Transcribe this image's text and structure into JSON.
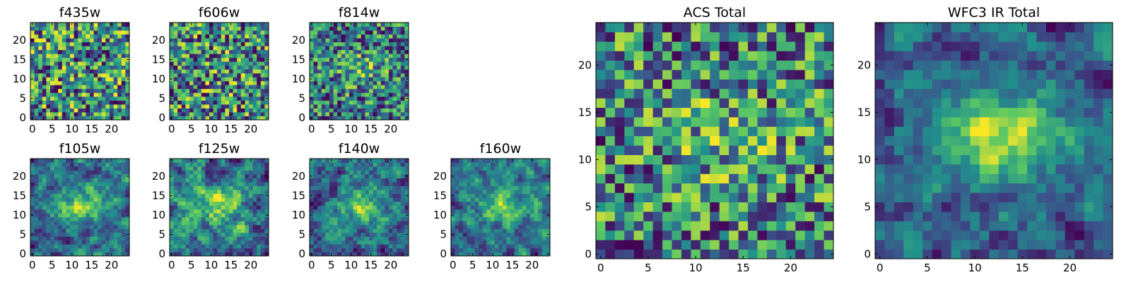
{
  "chart_data": {
    "type": "heatmap",
    "description_colormap": "viridis",
    "colormap_stops": [
      "#440154",
      "#3b528b",
      "#21918c",
      "#5ec962",
      "#fde725"
    ],
    "grid_size": [
      25,
      25
    ],
    "panels": [
      {
        "id": "f435w",
        "title": "f435w",
        "xticks": [
          0,
          5,
          10,
          15,
          20
        ],
        "yticks": [
          0,
          5,
          10,
          15,
          20
        ],
        "xlim": [
          0,
          25
        ],
        "ylim": [
          0,
          25
        ],
        "pattern": "noise",
        "seed": 11,
        "peak": 0.0
      },
      {
        "id": "f606w",
        "title": "f606w",
        "xticks": [
          0,
          5,
          10,
          15,
          20
        ],
        "yticks": [
          0,
          5,
          10,
          15,
          20
        ],
        "xlim": [
          0,
          25
        ],
        "ylim": [
          0,
          25
        ],
        "pattern": "noise",
        "seed": 23,
        "peak": 0.05
      },
      {
        "id": "f814w",
        "title": "f814w",
        "xticks": [
          0,
          5,
          10,
          15,
          20
        ],
        "yticks": [
          0,
          5,
          10,
          15,
          20
        ],
        "xlim": [
          0,
          25
        ],
        "ylim": [
          0,
          25
        ],
        "pattern": "noise",
        "seed": 37,
        "peak": 0.25
      },
      {
        "id": "f105w",
        "title": "f105w",
        "xticks": [
          0,
          5,
          10,
          15,
          20
        ],
        "yticks": [
          0,
          5,
          10,
          15,
          20
        ],
        "xlim": [
          0,
          25
        ],
        "ylim": [
          0,
          25
        ],
        "pattern": "smooth",
        "seed": 41,
        "peak": 0.45
      },
      {
        "id": "f125w",
        "title": "f125w",
        "xticks": [
          0,
          5,
          10,
          15,
          20
        ],
        "yticks": [
          0,
          5,
          10,
          15,
          20
        ],
        "xlim": [
          0,
          25
        ],
        "ylim": [
          0,
          25
        ],
        "pattern": "smooth",
        "seed": 53,
        "peak": 0.3
      },
      {
        "id": "f140w",
        "title": "f140w",
        "xticks": [
          0,
          5,
          10,
          15,
          20
        ],
        "yticks": [
          0,
          5,
          10,
          15,
          20
        ],
        "xlim": [
          0,
          25
        ],
        "ylim": [
          0,
          25
        ],
        "pattern": "smooth",
        "seed": 67,
        "peak": 0.35
      },
      {
        "id": "f160w",
        "title": "f160w",
        "xticks": [
          0,
          5,
          10,
          15,
          20
        ],
        "yticks": [
          0,
          5,
          10,
          15,
          20
        ],
        "xlim": [
          0,
          25
        ],
        "ylim": [
          0,
          25
        ],
        "pattern": "smooth",
        "seed": 79,
        "peak": 0.4
      },
      {
        "id": "acs-total",
        "title": "ACS Total",
        "xticks": [
          0,
          5,
          10,
          15,
          20
        ],
        "yticks": [
          0,
          5,
          10,
          15,
          20
        ],
        "xlim": [
          0,
          25
        ],
        "ylim": [
          0,
          25
        ],
        "pattern": "noise",
        "seed": 97,
        "peak": 0.2
      },
      {
        "id": "wfc3-ir-total",
        "title": "WFC3 IR Total",
        "xticks": [
          0,
          5,
          10,
          15,
          20
        ],
        "yticks": [
          0,
          5,
          10,
          15,
          20
        ],
        "xlim": [
          0,
          25
        ],
        "ylim": [
          0,
          25
        ],
        "pattern": "smooth",
        "seed": 113,
        "peak": 0.6
      }
    ]
  }
}
